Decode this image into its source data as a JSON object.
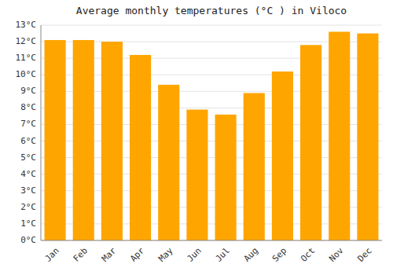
{
  "chart_data": {
    "type": "bar",
    "title": "Average monthly temperatures (°C ) in Viloco",
    "categories": [
      "Jan",
      "Feb",
      "Mar",
      "Apr",
      "May",
      "Jun",
      "Jul",
      "Aug",
      "Sep",
      "Oct",
      "Nov",
      "Dec"
    ],
    "values": [
      12.1,
      12.1,
      12.0,
      11.2,
      9.4,
      7.9,
      7.6,
      8.9,
      10.2,
      11.8,
      12.6,
      12.5
    ],
    "color": "#FFA500",
    "ylim": [
      0,
      13
    ],
    "yticks": [
      {
        "value": 0,
        "label": "0°C"
      },
      {
        "value": 1,
        "label": "1°C"
      },
      {
        "value": 2,
        "label": "2°C"
      },
      {
        "value": 3,
        "label": "3°C"
      },
      {
        "value": 4,
        "label": "4°C"
      },
      {
        "value": 5,
        "label": "5°C"
      },
      {
        "value": 6,
        "label": "6°C"
      },
      {
        "value": 7,
        "label": "7°C"
      },
      {
        "value": 8,
        "label": "8°C"
      },
      {
        "value": 9,
        "label": "9°C"
      },
      {
        "value": 10,
        "label": "10°C"
      },
      {
        "value": 11,
        "label": "11°C"
      },
      {
        "value": 12,
        "label": "12°C"
      },
      {
        "value": 13,
        "label": "13°C"
      }
    ],
    "grid": true
  }
}
